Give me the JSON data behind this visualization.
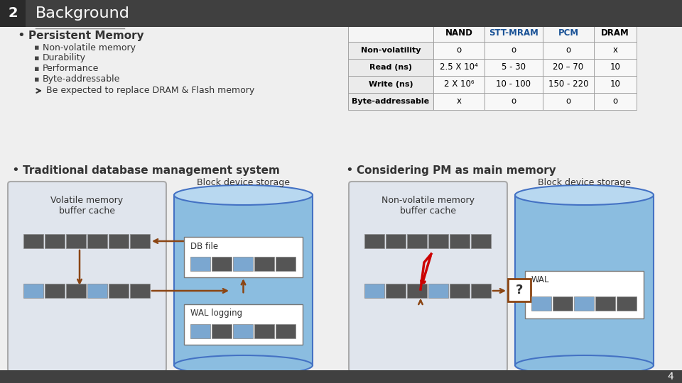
{
  "title": "Background",
  "slide_number": "2",
  "bg_color": "#efefef",
  "header_bg": "#404040",
  "title_color": "#ffffff",
  "bullet_main": "Persistent Memory",
  "bullets": [
    "Non-volatile memory",
    "Durability",
    "Performance",
    "Byte-addressable"
  ],
  "arrow_text": "Be expected to replace DRAM & Flash memory",
  "table_headers": [
    "",
    "NAND",
    "STT-MRAM",
    "PCM",
    "DRAM"
  ],
  "table_rows": [
    [
      "Non-volatility",
      "o",
      "o",
      "o",
      "x"
    ],
    [
      "Read (ns)",
      "2.5 X 10⁴",
      "5 - 30",
      "20 – 70",
      "10"
    ],
    [
      "Write (ns)",
      "2 X 10⁶",
      "10 - 100",
      "150 - 220",
      "10"
    ],
    [
      "Byte-addressable",
      "x",
      "o",
      "o",
      "o"
    ]
  ],
  "bullet2_main": "Traditional database management system",
  "bullet3_main": "Considering PM as main memory",
  "box1_label": "Volatile memory\nbuffer cache",
  "box2_label": "Block device storage",
  "box3_label": "DB file",
  "box4_label": "WAL logging",
  "box5_label": "Non-volatile memory\nbuffer cache",
  "box6_label": "Block device storage",
  "box7_label": "WAL",
  "question_label": "?",
  "brown_arrow": "#8B4513",
  "blue_mem": "#7BA7D0",
  "dark_mem": "#555555",
  "cyl_body": "#8BBDE0",
  "cyl_top": "#b8d8f0",
  "cyl_edge": "#4472c4",
  "box_bg": "#dce6f0",
  "white": "#ffffff",
  "gray_box": "#d0d0d8"
}
